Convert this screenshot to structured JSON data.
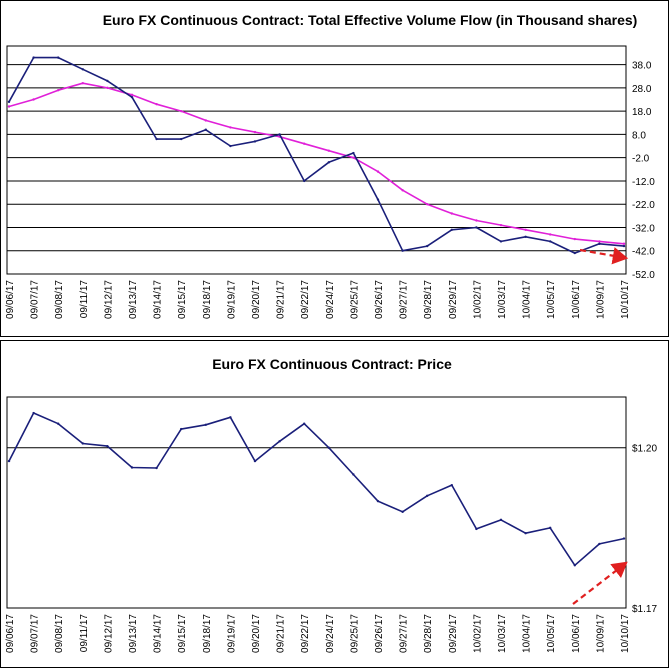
{
  "colors": {
    "flow": "#1a1f7a",
    "ma": "#e020d8",
    "arrow": "#e02020",
    "grid": "#000000"
  },
  "chart_data": [
    {
      "type": "line",
      "title": "Euro FX Continuous Contract: Total Effective Volume Flow (in Thousand shares)",
      "ylim": [
        -52,
        46
      ],
      "yticks": [
        "38.0",
        "28.0",
        "18.0",
        "8.0",
        "-2.0",
        "-12.0",
        "-22.0",
        "-32.0",
        "-42.0",
        "-52.0"
      ],
      "ytick_values": [
        38,
        28,
        18,
        8,
        -2,
        -12,
        -22,
        -32,
        -42,
        -52
      ],
      "grid": true,
      "categories": [
        "09/06/17",
        "09/07/17",
        "09/08/17",
        "09/11/17",
        "09/12/17",
        "09/13/17",
        "09/14/17",
        "09/15/17",
        "09/18/17",
        "09/19/17",
        "09/20/17",
        "09/21/17",
        "09/22/17",
        "09/24/17",
        "09/25/17",
        "09/26/17",
        "09/27/17",
        "09/28/17",
        "09/29/17",
        "10/02/17",
        "10/03/17",
        "10/04/17",
        "10/05/17",
        "10/06/17",
        "10/09/17",
        "10/10/17"
      ],
      "series": [
        {
          "values": [
            22,
            41,
            41,
            36,
            31,
            24,
            6,
            6,
            10,
            3,
            5,
            8,
            -12,
            -4,
            0,
            -20,
            -42,
            -40,
            -33,
            -32,
            -38,
            -36,
            -38,
            -43,
            -39,
            -40
          ]
        },
        {
          "values": [
            20,
            23,
            27,
            30,
            28,
            25,
            21,
            18,
            14,
            11,
            9,
            7,
            4,
            1,
            -2,
            -8,
            -16,
            -22,
            -26,
            -29,
            -31,
            -33,
            -35,
            -37,
            -38,
            -39
          ]
        }
      ]
    },
    {
      "type": "line",
      "title": "Euro FX Continuous Contract: Price",
      "ylim": [
        1.17,
        1.2095
      ],
      "yticks": [
        "$1.20",
        "$1.17"
      ],
      "ytick_values": [
        1.2,
        1.17
      ],
      "grid": true,
      "categories": [
        "09/06/17",
        "09/07/17",
        "09/08/17",
        "09/11/17",
        "09/12/17",
        "09/13/17",
        "09/14/17",
        "09/15/17",
        "09/18/17",
        "09/19/17",
        "09/20/17",
        "09/21/17",
        "09/22/17",
        "09/24/17",
        "09/25/17",
        "09/26/17",
        "09/27/17",
        "09/28/17",
        "09/29/17",
        "10/02/17",
        "10/03/17",
        "10/04/17",
        "10/05/17",
        "10/06/17",
        "10/09/17",
        "10/10/17"
      ],
      "series": [
        {
          "values": [
            1.1975,
            1.2065,
            1.2045,
            1.2008,
            1.2003,
            1.1963,
            1.1962,
            1.2035,
            1.2043,
            1.2057,
            1.1975,
            1.2012,
            1.2045,
            1.2,
            1.195,
            1.19,
            1.188,
            1.191,
            1.193,
            1.1848,
            1.1865,
            1.184,
            1.185,
            1.178,
            1.182,
            1.183
          ]
        }
      ]
    }
  ]
}
